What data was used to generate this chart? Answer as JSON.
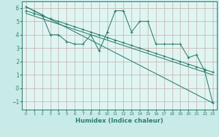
{
  "xlabel": "Humidex (Indice chaleur)",
  "background_color": "#c8ebe8",
  "plot_bg_color": "#dff5f2",
  "grid_color": "#c8b4b4",
  "line_color": "#2e7d6e",
  "xlim": [
    -0.5,
    23.5
  ],
  "ylim": [
    -1.6,
    6.5
  ],
  "xticks": [
    0,
    1,
    2,
    3,
    4,
    5,
    6,
    7,
    8,
    9,
    10,
    11,
    12,
    13,
    14,
    15,
    16,
    17,
    18,
    19,
    20,
    21,
    22,
    23
  ],
  "yticks": [
    -1,
    0,
    1,
    2,
    3,
    4,
    5,
    6
  ],
  "line1_x": [
    0,
    1,
    2,
    3,
    4,
    5,
    6,
    7,
    8,
    9,
    10,
    11,
    12,
    13,
    14,
    15,
    16,
    17,
    18,
    19,
    20,
    21,
    22,
    23
  ],
  "line1_y": [
    6.1,
    5.8,
    5.5,
    4.0,
    4.0,
    3.5,
    3.3,
    3.3,
    4.0,
    2.8,
    4.2,
    5.8,
    5.8,
    4.2,
    5.0,
    5.0,
    3.3,
    3.3,
    3.3,
    3.3,
    2.3,
    2.5,
    1.3,
    -1.1
  ],
  "line2_x": [
    0,
    23
  ],
  "line2_y": [
    6.1,
    -1.1
  ],
  "line3_x": [
    0,
    1,
    2,
    3,
    4,
    5,
    6,
    7,
    8,
    9,
    10,
    11,
    12,
    13,
    14,
    15,
    16,
    17,
    18,
    19,
    20,
    21,
    22,
    23
  ],
  "line3_y": [
    5.8,
    5.6,
    5.4,
    5.2,
    5.0,
    4.8,
    4.6,
    4.4,
    4.2,
    4.0,
    3.8,
    3.6,
    3.4,
    3.2,
    3.0,
    2.8,
    2.6,
    2.4,
    2.2,
    2.0,
    1.8,
    1.6,
    1.4,
    1.2
  ],
  "line4_x": [
    0,
    1,
    2,
    3,
    4,
    5,
    6,
    7,
    8,
    9,
    10,
    11,
    12,
    13,
    14,
    15,
    16,
    17,
    18,
    19,
    20,
    21,
    22,
    23
  ],
  "line4_y": [
    5.6,
    5.4,
    5.2,
    5.0,
    4.8,
    4.6,
    4.4,
    4.2,
    4.0,
    3.8,
    3.6,
    3.4,
    3.2,
    3.0,
    2.8,
    2.6,
    2.4,
    2.2,
    2.0,
    1.8,
    1.6,
    1.4,
    1.2,
    1.0
  ]
}
